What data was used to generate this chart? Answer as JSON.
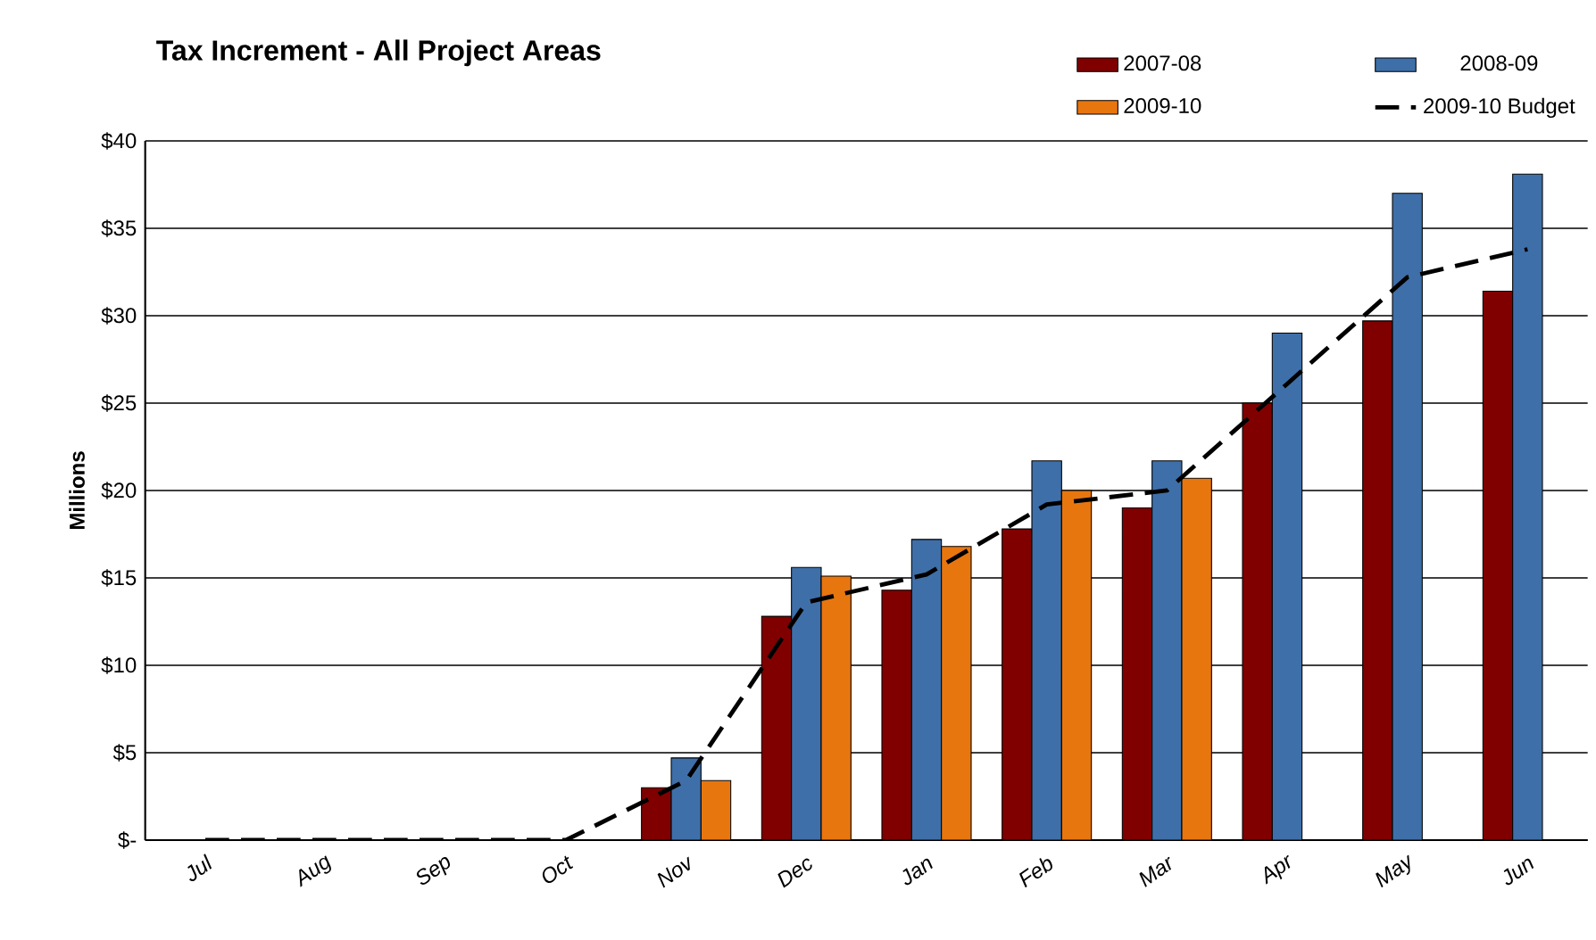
{
  "chart_data": {
    "type": "bar",
    "title": "Tax Increment - All Project Areas",
    "ylabel": "Millions",
    "categories": [
      "Jul",
      "Aug",
      "Sep",
      "Oct",
      "Nov",
      "Dec",
      "Jan",
      "Feb",
      "Mar",
      "Apr",
      "May",
      "Jun"
    ],
    "series": [
      {
        "name": "2007-08",
        "color": "#800000",
        "values": [
          null,
          null,
          null,
          null,
          3.0,
          12.8,
          14.3,
          17.8,
          19.0,
          25.0,
          29.7,
          31.4
        ]
      },
      {
        "name": "2008-09",
        "color": "#3f6fa8",
        "values": [
          null,
          null,
          null,
          null,
          4.7,
          15.6,
          17.2,
          21.7,
          21.7,
          29.0,
          37.0,
          38.1
        ]
      },
      {
        "name": "2009-10",
        "color": "#e8760f",
        "values": [
          null,
          null,
          null,
          null,
          3.4,
          15.1,
          16.8,
          20.0,
          20.7,
          null,
          null,
          null
        ]
      },
      {
        "name": "2009-10 Budget",
        "type": "line",
        "line_style": "dashed",
        "color": "#000000",
        "values": [
          0,
          0,
          0,
          0,
          3.4,
          13.6,
          15.2,
          19.2,
          20.0,
          26.1,
          32.2,
          33.8
        ]
      }
    ],
    "ylim": [
      0,
      40
    ],
    "yticks": [
      {
        "value": 0,
        "label": "$-"
      },
      {
        "value": 5,
        "label": "$5"
      },
      {
        "value": 10,
        "label": "$10"
      },
      {
        "value": 15,
        "label": "$15"
      },
      {
        "value": 20,
        "label": "$20"
      },
      {
        "value": 25,
        "label": "$25"
      },
      {
        "value": 30,
        "label": "$30"
      },
      {
        "value": 35,
        "label": "$35"
      },
      {
        "value": 40,
        "label": "$40"
      }
    ],
    "grid": "y",
    "legend": "top right"
  }
}
